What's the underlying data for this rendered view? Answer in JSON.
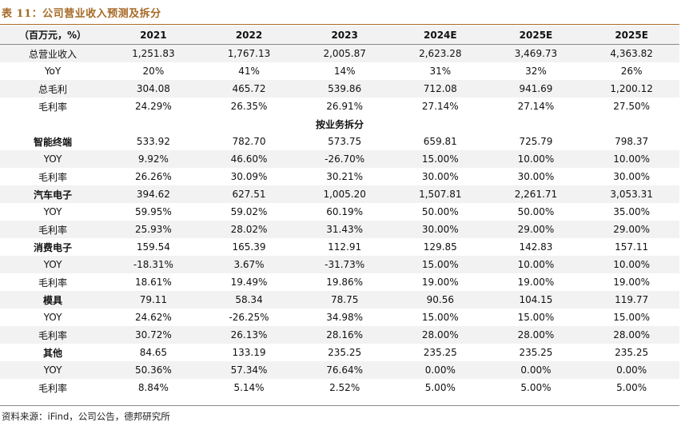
{
  "title": "表 11：公司营业收入预测及拆分",
  "source": "资料来源：iFind，公司公告，德邦研究所",
  "header": [
    "（百万元，%）",
    "2021",
    "2022",
    "2023",
    "2024E",
    "2025E",
    "2025E"
  ],
  "rows": [
    {
      "label": "总营业收入",
      "values": [
        "1,251.83",
        "1,767.13",
        "2,005.87",
        "2,623.28",
        "3,469.73",
        "4,363.82"
      ]
    },
    {
      "label": "YoY",
      "values": [
        "20%",
        "41%",
        "14%",
        "31%",
        "32%",
        "26%"
      ]
    },
    {
      "label": "总毛利",
      "values": [
        "304.08",
        "465.72",
        "539.86",
        "712.08",
        "941.69",
        "1,200.12"
      ]
    },
    {
      "label": "毛利率",
      "values": [
        "24.29%",
        "26.35%",
        "26.91%",
        "27.14%",
        "27.14%",
        "27.50%"
      ]
    },
    {
      "section": true,
      "label": "按业务拆分"
    },
    {
      "label": "智能终端",
      "bold": true,
      "values": [
        "533.92",
        "782.70",
        "573.75",
        "659.81",
        "725.79",
        "798.37"
      ]
    },
    {
      "label": "YOY",
      "values": [
        "9.92%",
        "46.60%",
        "-26.70%",
        "15.00%",
        "10.00%",
        "10.00%"
      ]
    },
    {
      "label": "毛利率",
      "values": [
        "26.26%",
        "30.09%",
        "30.21%",
        "30.00%",
        "30.00%",
        "30.00%"
      ]
    },
    {
      "label": "汽车电子",
      "bold": true,
      "values": [
        "394.62",
        "627.51",
        "1,005.20",
        "1,507.81",
        "2,261.71",
        "3,053.31"
      ]
    },
    {
      "label": "YOY",
      "values": [
        "59.95%",
        "59.02%",
        "60.19%",
        "50.00%",
        "50.00%",
        "35.00%"
      ]
    },
    {
      "label": "毛利率",
      "values": [
        "25.93%",
        "28.02%",
        "31.43%",
        "30.00%",
        "29.00%",
        "29.00%"
      ]
    },
    {
      "label": "消费电子",
      "bold": true,
      "values": [
        "159.54",
        "165.39",
        "112.91",
        "129.85",
        "142.83",
        "157.11"
      ]
    },
    {
      "label": "YOY",
      "values": [
        "-18.31%",
        "3.67%",
        "-31.73%",
        "15.00%",
        "10.00%",
        "10.00%"
      ]
    },
    {
      "label": "毛利率",
      "values": [
        "18.61%",
        "19.49%",
        "19.86%",
        "19.00%",
        "19.00%",
        "19.00%"
      ]
    },
    {
      "label": "模具",
      "bold": true,
      "values": [
        "79.11",
        "58.34",
        "78.75",
        "90.56",
        "104.15",
        "119.77"
      ]
    },
    {
      "label": "YOY",
      "values": [
        "24.62%",
        "-26.25%",
        "34.98%",
        "15.00%",
        "15.00%",
        "15.00%"
      ]
    },
    {
      "label": "毛利率",
      "values": [
        "30.72%",
        "26.13%",
        "28.16%",
        "28.00%",
        "28.00%",
        "28.00%"
      ]
    },
    {
      "label": "其他",
      "bold": true,
      "values": [
        "84.65",
        "133.19",
        "235.25",
        "235.25",
        "235.25",
        "235.25"
      ]
    },
    {
      "label": "YOY",
      "values": [
        "50.36%",
        "57.34%",
        "76.64%",
        "0.00%",
        "0.00%",
        "0.00%"
      ]
    },
    {
      "label": "毛利率",
      "values": [
        "8.84%",
        "5.14%",
        "2.52%",
        "5.00%",
        "5.00%",
        "5.00%"
      ]
    }
  ]
}
